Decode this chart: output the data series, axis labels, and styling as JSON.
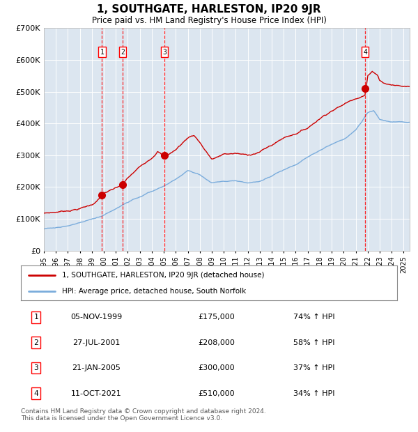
{
  "title": "1, SOUTHGATE, HARLESTON, IP20 9JR",
  "subtitle": "Price paid vs. HM Land Registry's House Price Index (HPI)",
  "background_color": "#dce6f0",
  "red_line_color": "#cc0000",
  "blue_line_color": "#7aacdc",
  "ylim": [
    0,
    700000
  ],
  "yticks": [
    0,
    100000,
    200000,
    300000,
    400000,
    500000,
    600000,
    700000
  ],
  "ytick_labels": [
    "£0",
    "£100K",
    "£200K",
    "£300K",
    "£400K",
    "£500K",
    "£600K",
    "£700K"
  ],
  "sale_events": [
    {
      "num": 1,
      "date": "05-NOV-1999",
      "price": 175000,
      "pct": "74%",
      "x_year": 1999.84
    },
    {
      "num": 2,
      "date": "27-JUL-2001",
      "price": 208000,
      "pct": "58%",
      "x_year": 2001.56
    },
    {
      "num": 3,
      "date": "21-JAN-2005",
      "price": 300000,
      "pct": "37%",
      "x_year": 2005.05
    },
    {
      "num": 4,
      "date": "11-OCT-2021",
      "price": 510000,
      "pct": "34%",
      "x_year": 2021.78
    }
  ],
  "legend_line1": "1, SOUTHGATE, HARLESTON, IP20 9JR (detached house)",
  "legend_line2": "HPI: Average price, detached house, South Norfolk",
  "footer": "Contains HM Land Registry data © Crown copyright and database right 2024.\nThis data is licensed under the Open Government Licence v3.0.",
  "xmin": 1995.0,
  "xmax": 2025.5,
  "hpi_anchors_x": [
    1995,
    1996,
    1997,
    1998,
    1999,
    2000,
    2001,
    2002,
    2003,
    2004,
    2005,
    2006,
    2007,
    2008,
    2009,
    2010,
    2011,
    2012,
    2013,
    2014,
    2015,
    2016,
    2017,
    2018,
    2019,
    2020,
    2021,
    2021.5,
    2022,
    2022.5,
    2023,
    2024,
    2025
  ],
  "hpi_anchors_y": [
    68000,
    72000,
    78000,
    86000,
    96000,
    108000,
    128000,
    148000,
    168000,
    182000,
    198000,
    220000,
    248000,
    235000,
    210000,
    218000,
    218000,
    210000,
    218000,
    232000,
    252000,
    268000,
    292000,
    312000,
    330000,
    345000,
    375000,
    400000,
    430000,
    435000,
    408000,
    400000,
    400000
  ],
  "red_anchors_x": [
    1995,
    1996,
    1997,
    1998,
    1999,
    1999.84,
    2000,
    2001,
    2001.56,
    2002,
    2003,
    2004,
    2004.5,
    2005.05,
    2005.5,
    2006,
    2007,
    2007.5,
    2008,
    2008.5,
    2009,
    2009.5,
    2010,
    2011,
    2012,
    2013,
    2014,
    2015,
    2016,
    2017,
    2018,
    2019,
    2020,
    2021,
    2021.78,
    2022,
    2022.4,
    2022.8,
    2023,
    2023.5,
    2024,
    2025
  ],
  "red_anchors_y": [
    118000,
    122000,
    128000,
    136000,
    148000,
    175000,
    185000,
    198000,
    208000,
    228000,
    262000,
    295000,
    318000,
    300000,
    310000,
    322000,
    360000,
    370000,
    348000,
    320000,
    295000,
    300000,
    310000,
    312000,
    305000,
    318000,
    338000,
    362000,
    378000,
    396000,
    428000,
    456000,
    475000,
    498000,
    510000,
    570000,
    583000,
    575000,
    558000,
    548000,
    545000,
    540000
  ]
}
